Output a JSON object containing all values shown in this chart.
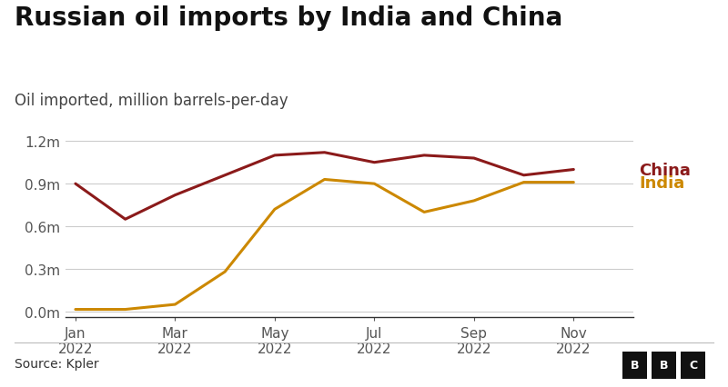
{
  "title": "Russian oil imports by India and China",
  "subtitle": "Oil imported, million barrels-per-day",
  "source": "Source: Kpler",
  "china_x": [
    0,
    1,
    2,
    3,
    4,
    5,
    6,
    7,
    8,
    9,
    10
  ],
  "china_y": [
    0.9,
    0.65,
    0.82,
    0.96,
    1.1,
    1.12,
    1.05,
    1.1,
    1.08,
    0.96,
    1.0
  ],
  "india_x": [
    0,
    1,
    2,
    3,
    4,
    5,
    6,
    7,
    8,
    9,
    10
  ],
  "india_y": [
    0.015,
    0.015,
    0.05,
    0.28,
    0.72,
    0.93,
    0.9,
    0.7,
    0.78,
    0.91,
    0.91
  ],
  "china_color": "#8B1A1A",
  "india_color": "#CC8800",
  "xtick_labels": [
    "Jan\n2022",
    "Mar\n2022",
    "May\n2022",
    "Jul\n2022",
    "Sep\n2022",
    "Nov\n2022"
  ],
  "xtick_positions": [
    0,
    2,
    4,
    6,
    8,
    10
  ],
  "ytick_values": [
    0.0,
    0.3,
    0.6,
    0.9,
    1.2
  ],
  "ytick_labels": [
    "0.0m",
    "0.3m",
    "0.6m",
    "0.9m",
    "1.2m"
  ],
  "ylim": [
    -0.04,
    1.38
  ],
  "xlim": [
    -0.2,
    11.2
  ],
  "background_color": "#ffffff",
  "title_fontsize": 20,
  "subtitle_fontsize": 12,
  "tick_fontsize": 11,
  "source_fontsize": 10,
  "line_width": 2.2,
  "grid_color": "#cccccc",
  "text_color": "#222222",
  "label_color_china": "#8B1A1A",
  "label_color_india": "#CC8800"
}
